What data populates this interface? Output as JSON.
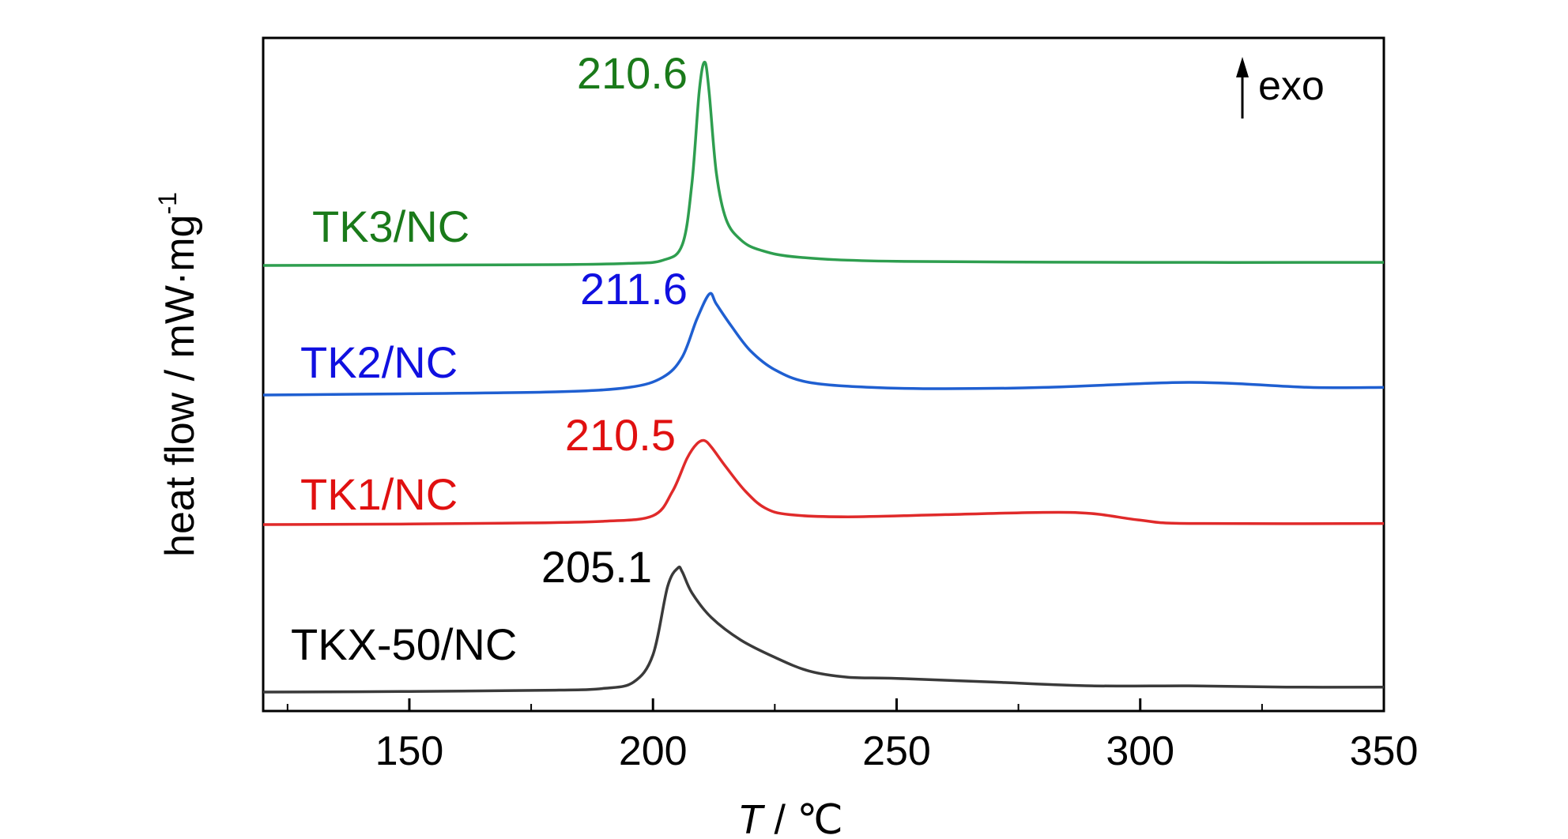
{
  "chart_data": {
    "type": "line",
    "xlabel_italic": "T",
    "xlabel_rest": " / ℃",
    "ylabel": "heat flow / mW·mg",
    "ylabel_sup": "-1",
    "xlim": [
      120,
      350
    ],
    "x_ticks": [
      150,
      200,
      250,
      300,
      350
    ],
    "x_minor_ticks": [
      125,
      175,
      225,
      275,
      325
    ],
    "y_ticks_shown": false,
    "grid": false,
    "annotation": "exo",
    "series": [
      {
        "name": "TK3/NC",
        "color": "#2e9e4f",
        "label_color": "#1a7a1a",
        "peak_label": "210.6",
        "points": [
          [
            120,
            0
          ],
          [
            150,
            0.3
          ],
          [
            180,
            0.8
          ],
          [
            195,
            2
          ],
          [
            202,
            5
          ],
          [
            206,
            20
          ],
          [
            208,
            80
          ],
          [
            209.5,
            170
          ],
          [
            210.6,
            198
          ],
          [
            211.5,
            170
          ],
          [
            213,
            90
          ],
          [
            215,
            45
          ],
          [
            218,
            25
          ],
          [
            222,
            15
          ],
          [
            230,
            8
          ],
          [
            250,
            4
          ],
          [
            300,
            3
          ],
          [
            350,
            3
          ]
        ]
      },
      {
        "name": "TK2/NC",
        "color": "#1f5fd1",
        "label_color": "#1010e0",
        "peak_label": "211.6",
        "points": [
          [
            120,
            0
          ],
          [
            150,
            1
          ],
          [
            180,
            2.5
          ],
          [
            195,
            6
          ],
          [
            202,
            14
          ],
          [
            206,
            30
          ],
          [
            209,
            60
          ],
          [
            211.6,
            80
          ],
          [
            213,
            72
          ],
          [
            216,
            55
          ],
          [
            220,
            35
          ],
          [
            225,
            20
          ],
          [
            232,
            10
          ],
          [
            245,
            6
          ],
          [
            260,
            5
          ],
          [
            280,
            6
          ],
          [
            300,
            9
          ],
          [
            310,
            10
          ],
          [
            320,
            9
          ],
          [
            335,
            6
          ],
          [
            350,
            6
          ]
        ]
      },
      {
        "name": "TK1/NC",
        "color": "#e02a2a",
        "label_color": "#e01010",
        "peak_label": "210.5",
        "points": [
          [
            120,
            0
          ],
          [
            150,
            0.5
          ],
          [
            175,
            1.5
          ],
          [
            190,
            3
          ],
          [
            200,
            8
          ],
          [
            204,
            30
          ],
          [
            207,
            60
          ],
          [
            209,
            73
          ],
          [
            210.5,
            76
          ],
          [
            212,
            70
          ],
          [
            215,
            52
          ],
          [
            219,
            30
          ],
          [
            223,
            15
          ],
          [
            228,
            9
          ],
          [
            240,
            7
          ],
          [
            260,
            9
          ],
          [
            280,
            11
          ],
          [
            290,
            10
          ],
          [
            300,
            4
          ],
          [
            310,
            1
          ],
          [
            350,
            1
          ]
        ]
      },
      {
        "name": "TKX-50/NC",
        "color": "#3a3a3a",
        "label_color": "#000000",
        "peak_label": "205.1",
        "points": [
          [
            120,
            0
          ],
          [
            150,
            0.5
          ],
          [
            180,
            1.5
          ],
          [
            190,
            3
          ],
          [
            196,
            8
          ],
          [
            200,
            30
          ],
          [
            203,
            85
          ],
          [
            205.1,
            100
          ],
          [
            206,
            97
          ],
          [
            208,
            80
          ],
          [
            212,
            60
          ],
          [
            218,
            42
          ],
          [
            225,
            28
          ],
          [
            232,
            17
          ],
          [
            240,
            12
          ],
          [
            250,
            11
          ],
          [
            270,
            8
          ],
          [
            290,
            5
          ],
          [
            310,
            5
          ],
          [
            330,
            4
          ],
          [
            350,
            4
          ]
        ]
      }
    ]
  }
}
